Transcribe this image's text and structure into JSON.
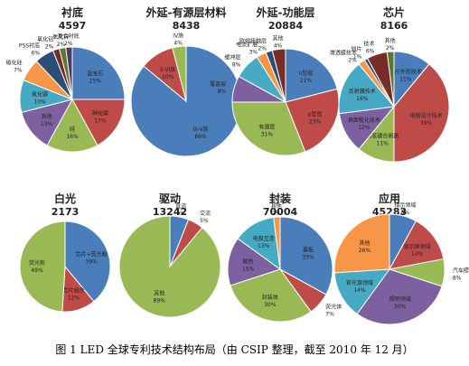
{
  "caption": "图 1 LED 全球专利技术结构布局（由 CSIP 整理，截至 2010 年 12 月）",
  "chart_data": [
    {
      "type": "pie",
      "title": "衬底",
      "total": "4597",
      "slices": [
        {
          "label": "蓝宝石",
          "percent": "25%",
          "value": 25,
          "color": "#4a7ebb"
        },
        {
          "label": "砷化镓",
          "percent": "17%",
          "value": 17,
          "color": "#be4b48"
        },
        {
          "label": "硅",
          "percent": "16%",
          "value": 16,
          "color": "#98b954"
        },
        {
          "label": "其他",
          "percent": "13%",
          "value": 13,
          "color": "#7d60a0"
        },
        {
          "label": "氮化镓",
          "percent": "10%",
          "value": 10,
          "color": "#46aac5"
        },
        {
          "label": "碳化硅",
          "percent": "7%",
          "value": 7,
          "color": "#f79646"
        },
        {
          "label": "PSS衬底",
          "percent": "6%",
          "value": 6,
          "color": "#2c4d75"
        },
        {
          "label": "氧化铝",
          "percent": "2%",
          "value": 2,
          "color": "#772c2a"
        },
        {
          "label": "氧化锌",
          "percent": "2%",
          "value": 2,
          "color": "#5f7530"
        },
        {
          "label": "复合衬底",
          "percent": "2%",
          "value": 2,
          "color": "#4b3a63"
        }
      ]
    },
    {
      "type": "pie",
      "title": "外延-有源层材料",
      "total": "8438",
      "slices": [
        {
          "label": "III-V族",
          "percent": "86%",
          "value": 86,
          "color": "#4a7ebb"
        },
        {
          "label": "II-VI族",
          "percent": "10%",
          "value": 10,
          "color": "#be4b48"
        },
        {
          "label": "IV族",
          "percent": "4%",
          "value": 4,
          "color": "#98b954"
        }
      ]
    },
    {
      "type": "pie",
      "title": "外延-功能层",
      "total": "20884",
      "slices": [
        {
          "label": "n型层",
          "percent": "21%",
          "value": 21,
          "color": "#4a7ebb"
        },
        {
          "label": "p型层",
          "percent": "23%",
          "value": 23,
          "color": "#be4b48"
        },
        {
          "label": "有源层",
          "percent": "31%",
          "value": 31,
          "color": "#98b954"
        },
        {
          "label": "覆盖层",
          "percent": "8%",
          "value": 8,
          "color": "#7d60a0"
        },
        {
          "label": "缓冲层",
          "percent": "8%",
          "value": 8,
          "color": "#46aac5"
        },
        {
          "label": "电流扩展",
          "percent": "3%",
          "value": 3,
          "color": "#f79646"
        },
        {
          "label": "欧姆接触层",
          "percent": "2%",
          "value": 2,
          "color": "#2c4d75"
        },
        {
          "label": "其他",
          "percent": "4%",
          "value": 4,
          "color": "#772c2a"
        }
      ]
    },
    {
      "type": "pie",
      "title": "芯片",
      "total": "8166",
      "slices": [
        {
          "label": "芯片外形技术",
          "percent": "11%",
          "value": 11,
          "color": "#4a7ebb"
        },
        {
          "label": "电极设计技术",
          "percent": "39%",
          "value": 39,
          "color": "#be4b48"
        },
        {
          "label": "衬底键合剥离",
          "percent": "11%",
          "value": 11,
          "color": "#98b954"
        },
        {
          "label": "表面粗化技术",
          "percent": "12%",
          "value": 12,
          "color": "#7d60a0"
        },
        {
          "label": "反射膜技术",
          "percent": "16%",
          "value": 16,
          "color": "#46aac5"
        },
        {
          "label": "增透膜技术",
          "percent": "2%",
          "value": 2,
          "color": "#f79646"
        },
        {
          "label": "划片",
          "percent": "1%",
          "value": 1,
          "color": "#2c4d75"
        },
        {
          "label": "技术",
          "percent": "6%",
          "value": 6,
          "color": "#772c2a"
        },
        {
          "label": "其他",
          "percent": "2%",
          "value": 2,
          "color": "#5f7530"
        }
      ]
    },
    {
      "type": "pie",
      "title": "白光",
      "total": "2173",
      "slices": [
        {
          "label": "芯片+荧光粉",
          "percent": "39%",
          "value": 39,
          "color": "#4a7ebb"
        },
        {
          "label": "芯片组合",
          "percent": "12%",
          "value": 12,
          "color": "#be4b48"
        },
        {
          "label": "荧光粉",
          "percent": "49%",
          "value": 49,
          "color": "#98b954"
        }
      ]
    },
    {
      "type": "pie",
      "title": "驱动",
      "total": "13242",
      "slices": [
        {
          "label": "直流",
          "percent": "6%",
          "value": 6,
          "color": "#4a7ebb"
        },
        {
          "label": "交流",
          "percent": "5%",
          "value": 5,
          "color": "#be4b48"
        },
        {
          "label": "其他",
          "percent": "89%",
          "value": 89,
          "color": "#98b954"
        }
      ]
    },
    {
      "type": "pie",
      "title": "封装",
      "total": "70004",
      "slices": [
        {
          "label": "基板",
          "percent": "33%",
          "value": 33,
          "color": "#4a7ebb"
        },
        {
          "label": "荧光体",
          "percent": "7%",
          "value": 7,
          "color": "#be4b48"
        },
        {
          "label": "封装体",
          "percent": "30%",
          "value": 30,
          "color": "#98b954"
        },
        {
          "label": "散热",
          "percent": "15%",
          "value": 15,
          "color": "#7d60a0"
        },
        {
          "label": "电极互连",
          "percent": "13%",
          "value": 13,
          "color": "#46aac5"
        },
        {
          "label": "其他",
          "percent": "2%",
          "value": 2,
          "color": "#f79646"
        }
      ]
    },
    {
      "type": "pie",
      "title": "应用",
      "total": "45283",
      "slices": [
        {
          "label": "指示领域",
          "percent": "8%",
          "value": 8,
          "color": "#4a7ebb"
        },
        {
          "label": "显示屏领域",
          "percent": "14%",
          "value": 14,
          "color": "#be4b48"
        },
        {
          "label": "汽车照明领域",
          "percent": "8%",
          "value": 8,
          "color": "#98b954"
        },
        {
          "label": "照明领域",
          "percent": "30%",
          "value": 30,
          "color": "#7d60a0"
        },
        {
          "label": "背光源领域",
          "percent": "14%",
          "value": 14,
          "color": "#46aac5"
        },
        {
          "label": "其他",
          "percent": "26%",
          "value": 26,
          "color": "#f79646"
        }
      ]
    }
  ]
}
